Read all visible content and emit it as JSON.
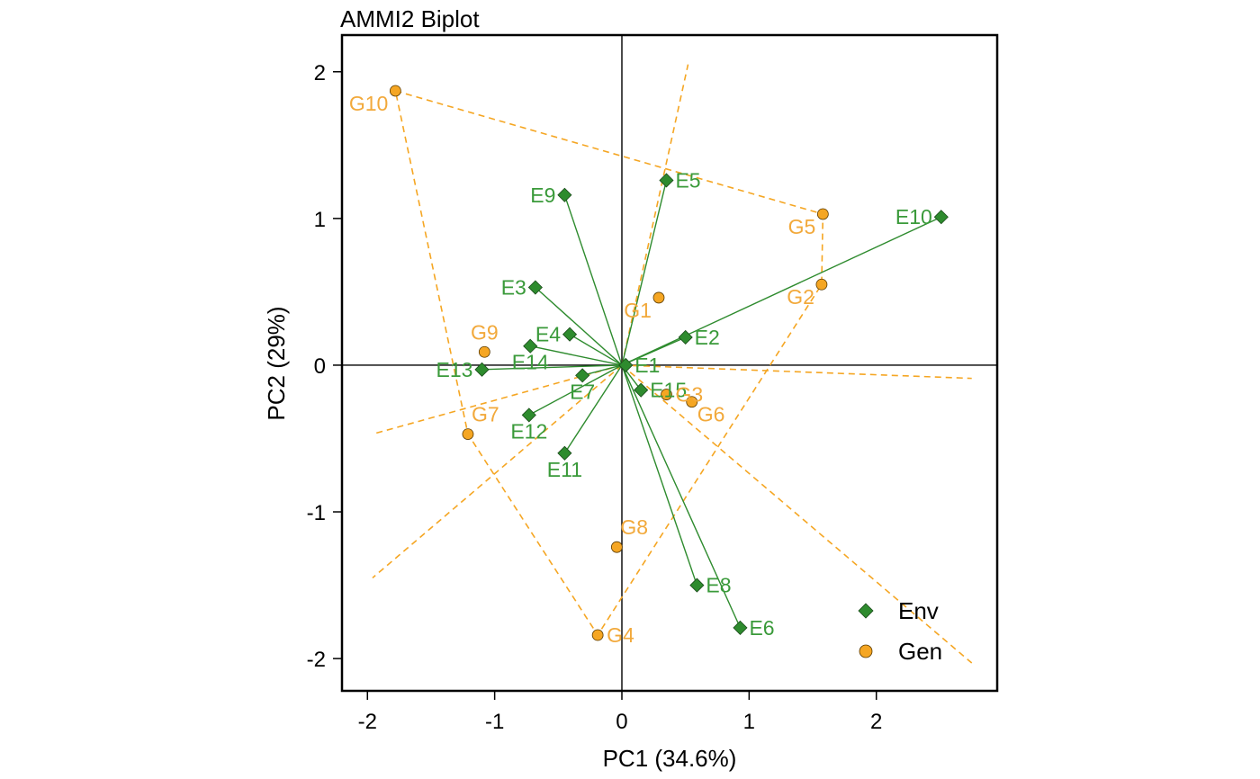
{
  "chart_data": {
    "type": "scatter",
    "title": "AMMI2 Biplot",
    "xlabel": "PC1 (34.6%)",
    "ylabel": "PC2 (29%)",
    "xlim": [
      -2.2,
      2.95
    ],
    "ylim": [
      -2.22,
      2.25
    ],
    "xticks": [
      -2,
      -1,
      0,
      1,
      2
    ],
    "xtick_labels": [
      "-2",
      "-1",
      "0",
      "1",
      "2"
    ],
    "yticks": [
      -2,
      -1,
      0,
      1,
      2
    ],
    "ytick_labels": [
      "-2",
      "-1",
      "0",
      "1",
      "2"
    ],
    "grid": false,
    "legend_position": "bottom-right",
    "colors": {
      "env": "#2e8b2e",
      "gen": "#f5a623",
      "env_label": "#3a9a3a",
      "gen_label": "#f2a93b"
    },
    "series": [
      {
        "name": "Env",
        "marker": "diamond",
        "points": [
          {
            "label": "E1",
            "x": 0.03,
            "y": 0.0
          },
          {
            "label": "E2",
            "x": 0.5,
            "y": 0.19
          },
          {
            "label": "E3",
            "x": -0.68,
            "y": 0.53
          },
          {
            "label": "E4",
            "x": -0.41,
            "y": 0.21
          },
          {
            "label": "E5",
            "x": 0.35,
            "y": 1.26
          },
          {
            "label": "E6",
            "x": 0.93,
            "y": -1.79
          },
          {
            "label": "E7",
            "x": -0.31,
            "y": -0.07
          },
          {
            "label": "E8",
            "x": 0.59,
            "y": -1.5
          },
          {
            "label": "E9",
            "x": -0.45,
            "y": 1.16
          },
          {
            "label": "E10",
            "x": 2.51,
            "y": 1.01
          },
          {
            "label": "E11",
            "x": -0.45,
            "y": -0.6
          },
          {
            "label": "E12",
            "x": -0.73,
            "y": -0.34
          },
          {
            "label": "E13",
            "x": -1.1,
            "y": -0.03
          },
          {
            "label": "E14",
            "x": -0.72,
            "y": 0.13
          },
          {
            "label": "E15",
            "x": 0.15,
            "y": -0.17
          }
        ]
      },
      {
        "name": "Gen",
        "marker": "circle",
        "points": [
          {
            "label": "G1",
            "x": 0.29,
            "y": 0.46
          },
          {
            "label": "G2",
            "x": 1.57,
            "y": 0.55
          },
          {
            "label": "G3",
            "x": 0.35,
            "y": -0.2
          },
          {
            "label": "G4",
            "x": -0.19,
            "y": -1.84
          },
          {
            "label": "G5",
            "x": 1.58,
            "y": 1.03
          },
          {
            "label": "G6",
            "x": 0.55,
            "y": -0.25
          },
          {
            "label": "G7",
            "x": -1.21,
            "y": -0.47
          },
          {
            "label": "G8",
            "x": -0.04,
            "y": -1.24
          },
          {
            "label": "G9",
            "x": -1.08,
            "y": 0.09
          },
          {
            "label": "G10",
            "x": -1.78,
            "y": 1.87
          }
        ]
      }
    ],
    "hull": [
      "G10",
      "G5",
      "G2",
      "G4",
      "G7"
    ],
    "sector_rays": [
      {
        "x": 0.52,
        "y": 2.05
      },
      {
        "x": 2.75,
        "y": -0.09
      },
      {
        "x": 2.75,
        "y": -2.03
      },
      {
        "x": -1.96,
        "y": -1.45
      },
      {
        "x": -1.96,
        "y": -0.47
      }
    ],
    "env_label_placement": {
      "E1": "right",
      "E2": "right",
      "E3": "left",
      "E4": "left",
      "E5": "right",
      "E6": "right",
      "E7": "below",
      "E8": "right",
      "E9": "left",
      "E10": "left",
      "E11": "below",
      "E12": "below",
      "E13": "left",
      "E14": "below",
      "E15": "right"
    },
    "gen_label_placement": {
      "G1": "below-left",
      "G2": "below-left",
      "G3": "right",
      "G4": "right",
      "G5": "below-left",
      "G6": "below-right",
      "G7": "above-right",
      "G8": "above-right",
      "G9": "above",
      "G10": "below-left"
    }
  }
}
